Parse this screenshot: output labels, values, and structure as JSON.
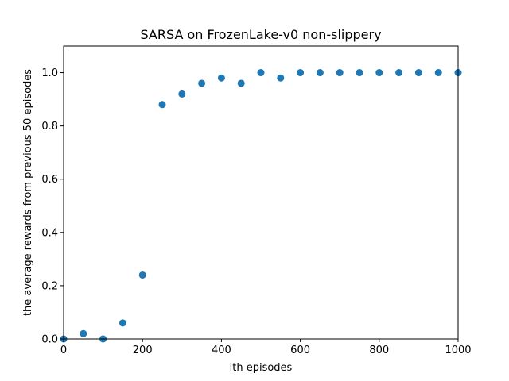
{
  "chart_data": {
    "type": "scatter",
    "title": "SARSA on FrozenLake-v0 non-slippery",
    "xlabel": "ith episodes",
    "ylabel": "the average rewards from previous 50 episodes",
    "xlim": [
      0,
      1000
    ],
    "ylim": [
      0,
      1.1
    ],
    "xticks": [
      0,
      200,
      400,
      600,
      800,
      1000
    ],
    "xtick_labels": [
      "0",
      "200",
      "400",
      "600",
      "800",
      "1000"
    ],
    "yticks": [
      0.0,
      0.2,
      0.4,
      0.6,
      0.8,
      1.0
    ],
    "ytick_labels": [
      "0.0",
      "0.2",
      "0.4",
      "0.6",
      "0.8",
      "1.0"
    ],
    "grid": false,
    "marker_color": "#1f77b4",
    "x": [
      0,
      50,
      100,
      150,
      200,
      250,
      300,
      350,
      400,
      450,
      500,
      550,
      600,
      650,
      700,
      750,
      800,
      850,
      900,
      950,
      1000
    ],
    "y": [
      0.0,
      0.02,
      0.0,
      0.06,
      0.24,
      0.88,
      0.92,
      0.96,
      0.98,
      0.96,
      1.0,
      0.98,
      1.0,
      1.0,
      1.0,
      1.0,
      1.0,
      1.0,
      1.0,
      1.0,
      1.0
    ]
  }
}
